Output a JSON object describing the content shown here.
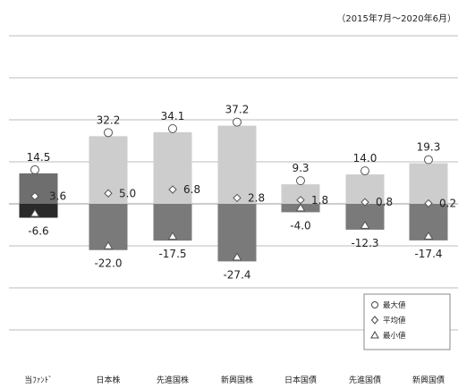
{
  "period_note": "（2015年7月～2020年6月）",
  "chart_data": {
    "type": "bar",
    "categories": [
      "当ﾌｧﾝﾄﾞ",
      "日本株",
      "先進国株",
      "新興国株",
      "日本国債",
      "先進国債",
      "新興国債"
    ],
    "series": [
      {
        "name": "最大値",
        "values": [
          14.5,
          32.2,
          34.1,
          37.2,
          9.3,
          14.0,
          19.3
        ]
      },
      {
        "name": "平均値",
        "values": [
          3.6,
          5.0,
          6.8,
          2.8,
          1.8,
          0.8,
          0.2
        ]
      },
      {
        "name": "最小値",
        "values": [
          -6.6,
          -22.0,
          -17.5,
          -27.4,
          -4.0,
          -12.3,
          -17.4
        ]
      }
    ],
    "value_labels": {
      "max": [
        "14.5",
        "32.2",
        "34.1",
        "37.2",
        "9.3",
        "14.0",
        "19.3"
      ],
      "avg": [
        "3.6",
        "5.0",
        "6.8",
        "2.8",
        "1.8",
        "0.8",
        "0.2"
      ],
      "min": [
        "-6.6",
        "-22.0",
        "-17.5",
        "-27.4",
        "-4.0",
        "-12.3",
        "-17.4"
      ]
    },
    "ylim": [
      -60,
      80
    ],
    "grid": true,
    "legend_position": "bottom-right",
    "colors": {
      "fund_positive": "#6e6e6e",
      "fund_negative": "#2a2a2a",
      "asset_positive": "#cdcdcd",
      "asset_negative": "#7a7a7a",
      "marker": "#ffffff",
      "grid": "#bdbdbd"
    }
  }
}
